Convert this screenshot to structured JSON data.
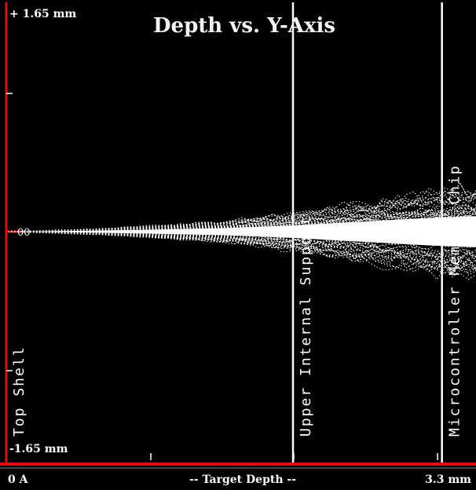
{
  "chart_data": {
    "type": "scatter",
    "title": "Depth vs. Y-Axis",
    "xlabel": "-- Target Depth --",
    "x_min_label": "0 A",
    "x_max_label": "3.3 mm",
    "y_max_label": "+ 1.65 mm",
    "y_min_label": "-1.65 mm",
    "zero_label": "00",
    "xlim": [
      0,
      3.3
    ],
    "ylim": [
      -1.65,
      1.65
    ],
    "spread": [
      {
        "x": 0.0,
        "y": 0.0
      },
      {
        "x": 0.5,
        "y": 0.02
      },
      {
        "x": 1.0,
        "y": 0.05
      },
      {
        "x": 1.5,
        "y": 0.09
      },
      {
        "x": 2.0,
        "y": 0.16
      },
      {
        "x": 2.5,
        "y": 0.26
      },
      {
        "x": 3.0,
        "y": 0.36
      },
      {
        "x": 3.3,
        "y": 0.4
      }
    ],
    "layers": [
      {
        "label": "Top Shell",
        "x": 0.0
      },
      {
        "label": "Upper Internal Support",
        "x": 2.01
      },
      {
        "label": "Microcontroller Memory Chip",
        "x": 3.06
      }
    ],
    "colors": {
      "background": "#000000",
      "trace": "#ffffff",
      "axis": "#e01010"
    }
  }
}
